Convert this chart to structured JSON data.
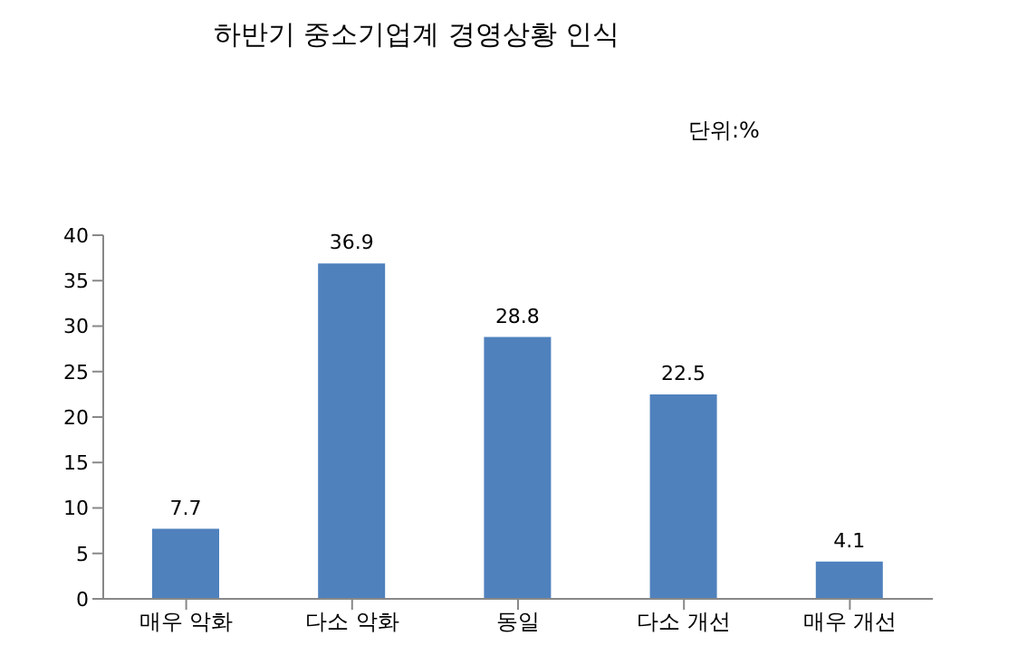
{
  "chart_data": {
    "type": "bar",
    "title": "하반기 중소기업계 경영상황 인식",
    "annotations": [
      "단위:%"
    ],
    "categories": [
      "매우 악화",
      "다소 악화",
      "동일",
      "다소 개선",
      "매우 개선"
    ],
    "values": [
      7.7,
      36.9,
      28.8,
      22.5,
      4.1
    ],
    "color": "#4f81bd",
    "ylim": [
      0,
      40
    ],
    "yticks": [
      0,
      5,
      10,
      15,
      20,
      25,
      30,
      35,
      40
    ],
    "grid": false,
    "legend": false,
    "data_labels": true
  }
}
